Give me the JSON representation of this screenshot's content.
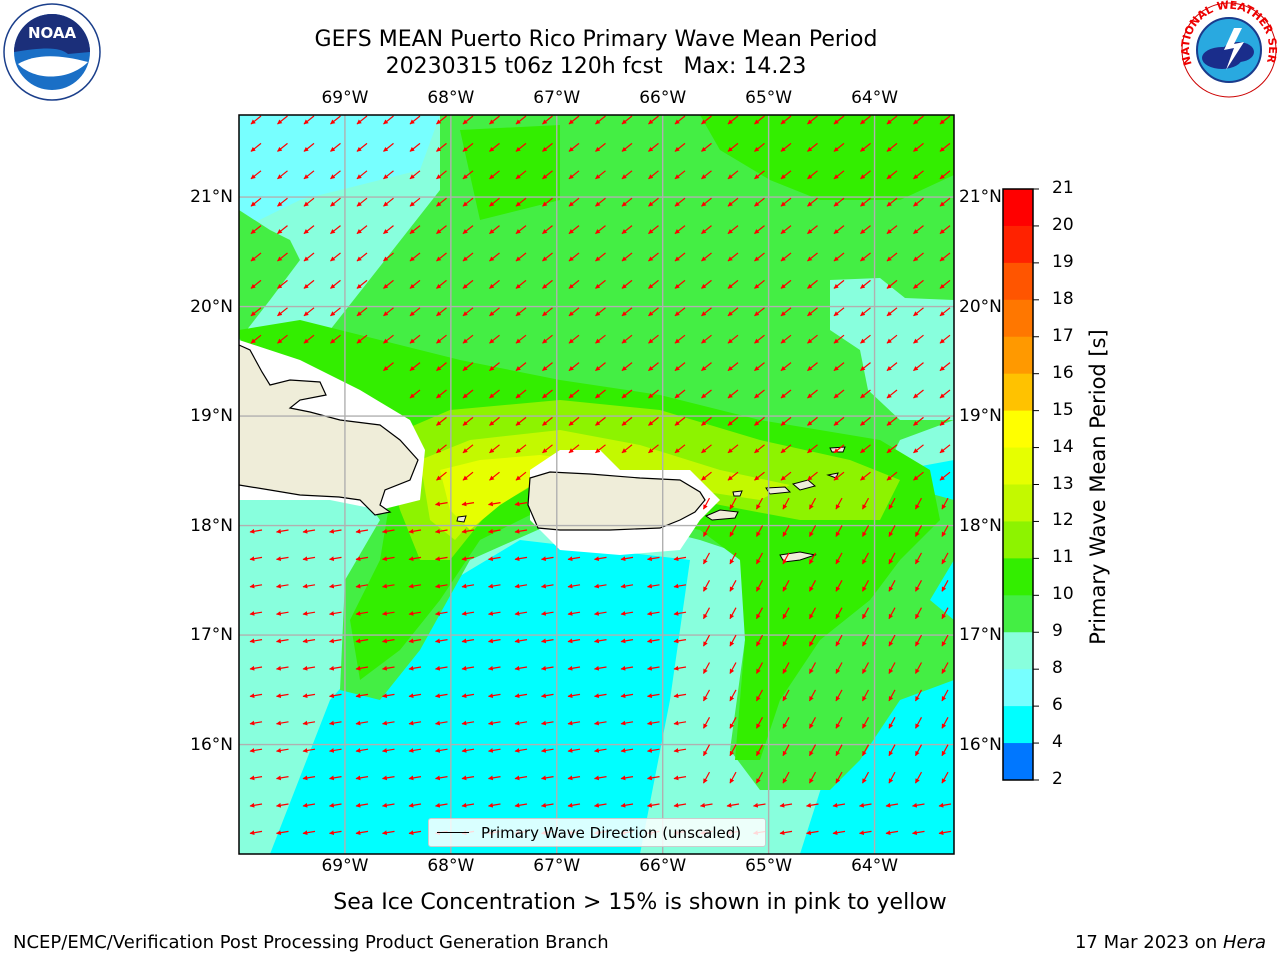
{
  "title": {
    "line1": "GEFS MEAN Puerto Rico Primary Wave Mean Period",
    "line2": "20230315 t06z 120h fcst   Max: 14.23"
  },
  "map": {
    "lon_labels": [
      "69°W",
      "68°W",
      "67°W",
      "66°W",
      "65°W",
      "64°W"
    ],
    "lat_labels": [
      "21°N",
      "20°N",
      "19°N",
      "18°N",
      "17°N",
      "16°N"
    ],
    "lon_range": [
      -70.0,
      -63.25
    ],
    "lat_range": [
      15.0,
      21.75
    ],
    "wave_direction": "from east-northeast",
    "land_color": "#efedd9",
    "arrow_color": "#ff0000"
  },
  "legend": {
    "label": "Primary Wave Direction (unscaled)"
  },
  "colorbar": {
    "label": "Primary Wave Mean Period [s]",
    "ticks": [
      "21",
      "20",
      "19",
      "18",
      "17",
      "16",
      "15",
      "14",
      "13",
      "12",
      "11",
      "10",
      "9",
      "8",
      "6",
      "4",
      "2"
    ],
    "colors": [
      "#ff0000",
      "#ff2200",
      "#ff5500",
      "#ff7700",
      "#ff9900",
      "#ffc200",
      "#ffff00",
      "#e6ff00",
      "#c3f900",
      "#8df300",
      "#33ee00",
      "#44ee44",
      "#88ffdd",
      "#77ffff",
      "#00ffff",
      "#0077ff",
      "#0000ff"
    ]
  },
  "note": "Sea Ice Concentration > 15% is shown in pink to yellow",
  "footer": {
    "left": "NCEP/EMC/Verification Post Processing Product Generation Branch",
    "date": "17 Mar 2023 on ",
    "host": "Hera"
  },
  "logos": {
    "left": "NOAA",
    "right": "NATIONAL WEATHER SERVICE"
  }
}
